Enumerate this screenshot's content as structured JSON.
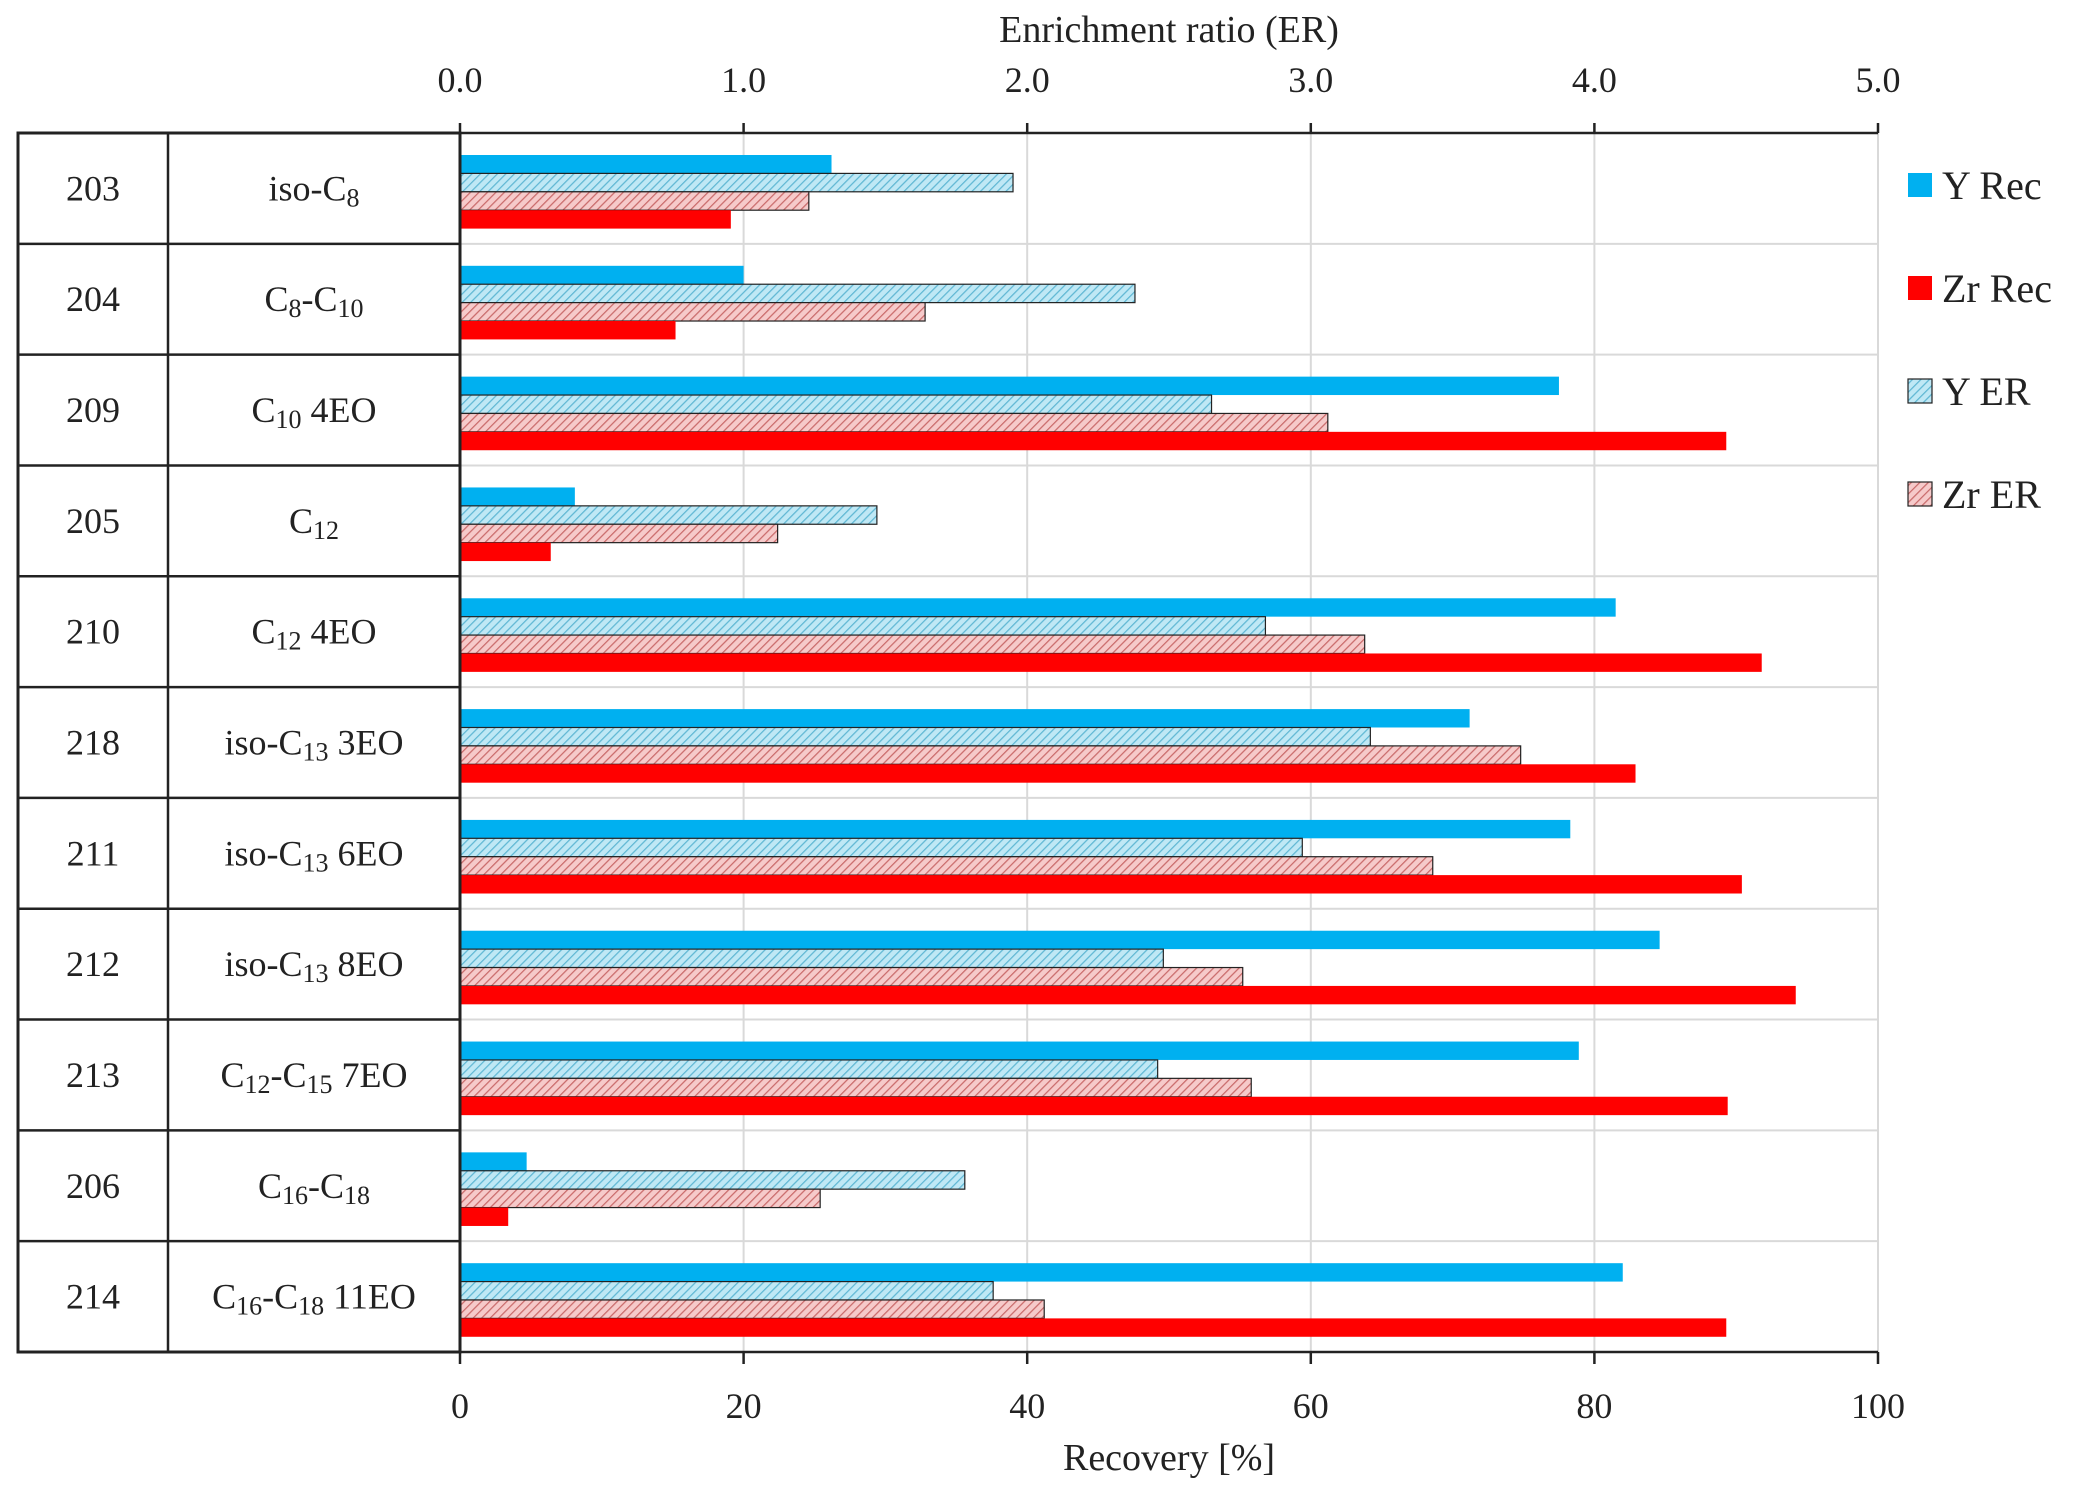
{
  "chart_data": {
    "type": "bar",
    "orientation": "horizontal",
    "top_axis": {
      "title": "Enrichment ratio (ER)",
      "min": 0,
      "max": 5,
      "ticks": [
        "0.0",
        "1.0",
        "2.0",
        "3.0",
        "4.0",
        "5.0"
      ]
    },
    "bottom_axis": {
      "title": "Recovery [%]",
      "min": 0,
      "max": 100,
      "ticks": [
        "0",
        "20",
        "40",
        "60",
        "80",
        "100"
      ]
    },
    "grid": true,
    "legend_position": "right",
    "rows": [
      {
        "id": "203",
        "name": "iso-C",
        "sub1": "8",
        "mid": "",
        "sub2": "",
        "tail": ""
      },
      {
        "id": "204",
        "name": "C",
        "sub1": "8",
        "mid": "-C",
        "sub2": "10",
        "tail": ""
      },
      {
        "id": "209",
        "name": "C",
        "sub1": "10",
        "mid": " 4EO",
        "sub2": "",
        "tail": ""
      },
      {
        "id": "205",
        "name": "C",
        "sub1": "12",
        "mid": "",
        "sub2": "",
        "tail": ""
      },
      {
        "id": "210",
        "name": "C",
        "sub1": "12",
        "mid": " 4EO",
        "sub2": "",
        "tail": ""
      },
      {
        "id": "218",
        "name": "iso-C",
        "sub1": "13",
        "mid": " 3EO",
        "sub2": "",
        "tail": ""
      },
      {
        "id": "211",
        "name": "iso-C",
        "sub1": "13",
        "mid": " 6EO",
        "sub2": "",
        "tail": ""
      },
      {
        "id": "212",
        "name": "iso-C",
        "sub1": "13",
        "mid": " 8EO",
        "sub2": "",
        "tail": ""
      },
      {
        "id": "213",
        "name": "C",
        "sub1": "12",
        "mid": "-C",
        "sub2": "15",
        "tail": " 7EO"
      },
      {
        "id": "206",
        "name": "C",
        "sub1": "16",
        "mid": "-C",
        "sub2": "18",
        "tail": ""
      },
      {
        "id": "214",
        "name": "C",
        "sub1": "16",
        "mid": "-C",
        "sub2": "18",
        "tail": " 11EO"
      }
    ],
    "series": [
      {
        "name": "Y Rec",
        "axis": "recovery",
        "color": "#00B0F0",
        "pattern": "solid",
        "values": [
          26.2,
          20.0,
          77.5,
          8.1,
          81.5,
          71.2,
          78.3,
          84.6,
          78.9,
          4.7,
          82.0
        ]
      },
      {
        "name": "Y ER",
        "axis": "ER",
        "color": "#9FD8EA",
        "pattern": "hatch",
        "values": [
          1.95,
          2.38,
          2.65,
          1.47,
          2.84,
          3.21,
          2.97,
          2.48,
          2.46,
          1.78,
          1.88
        ]
      },
      {
        "name": "Zr ER",
        "axis": "ER",
        "color": "#E8A0A0",
        "pattern": "hatch",
        "values": [
          1.23,
          1.64,
          3.06,
          1.12,
          3.19,
          3.74,
          3.43,
          2.76,
          2.79,
          1.27,
          2.06
        ]
      },
      {
        "name": "Zr Rec",
        "axis": "recovery",
        "color": "#FF0000",
        "pattern": "solid",
        "values": [
          19.1,
          15.2,
          89.3,
          6.4,
          91.8,
          82.9,
          90.4,
          94.2,
          89.4,
          3.4,
          89.3
        ]
      }
    ],
    "legend": [
      "Y Rec",
      "Zr Rec",
      "Y ER",
      "Zr ER"
    ]
  }
}
